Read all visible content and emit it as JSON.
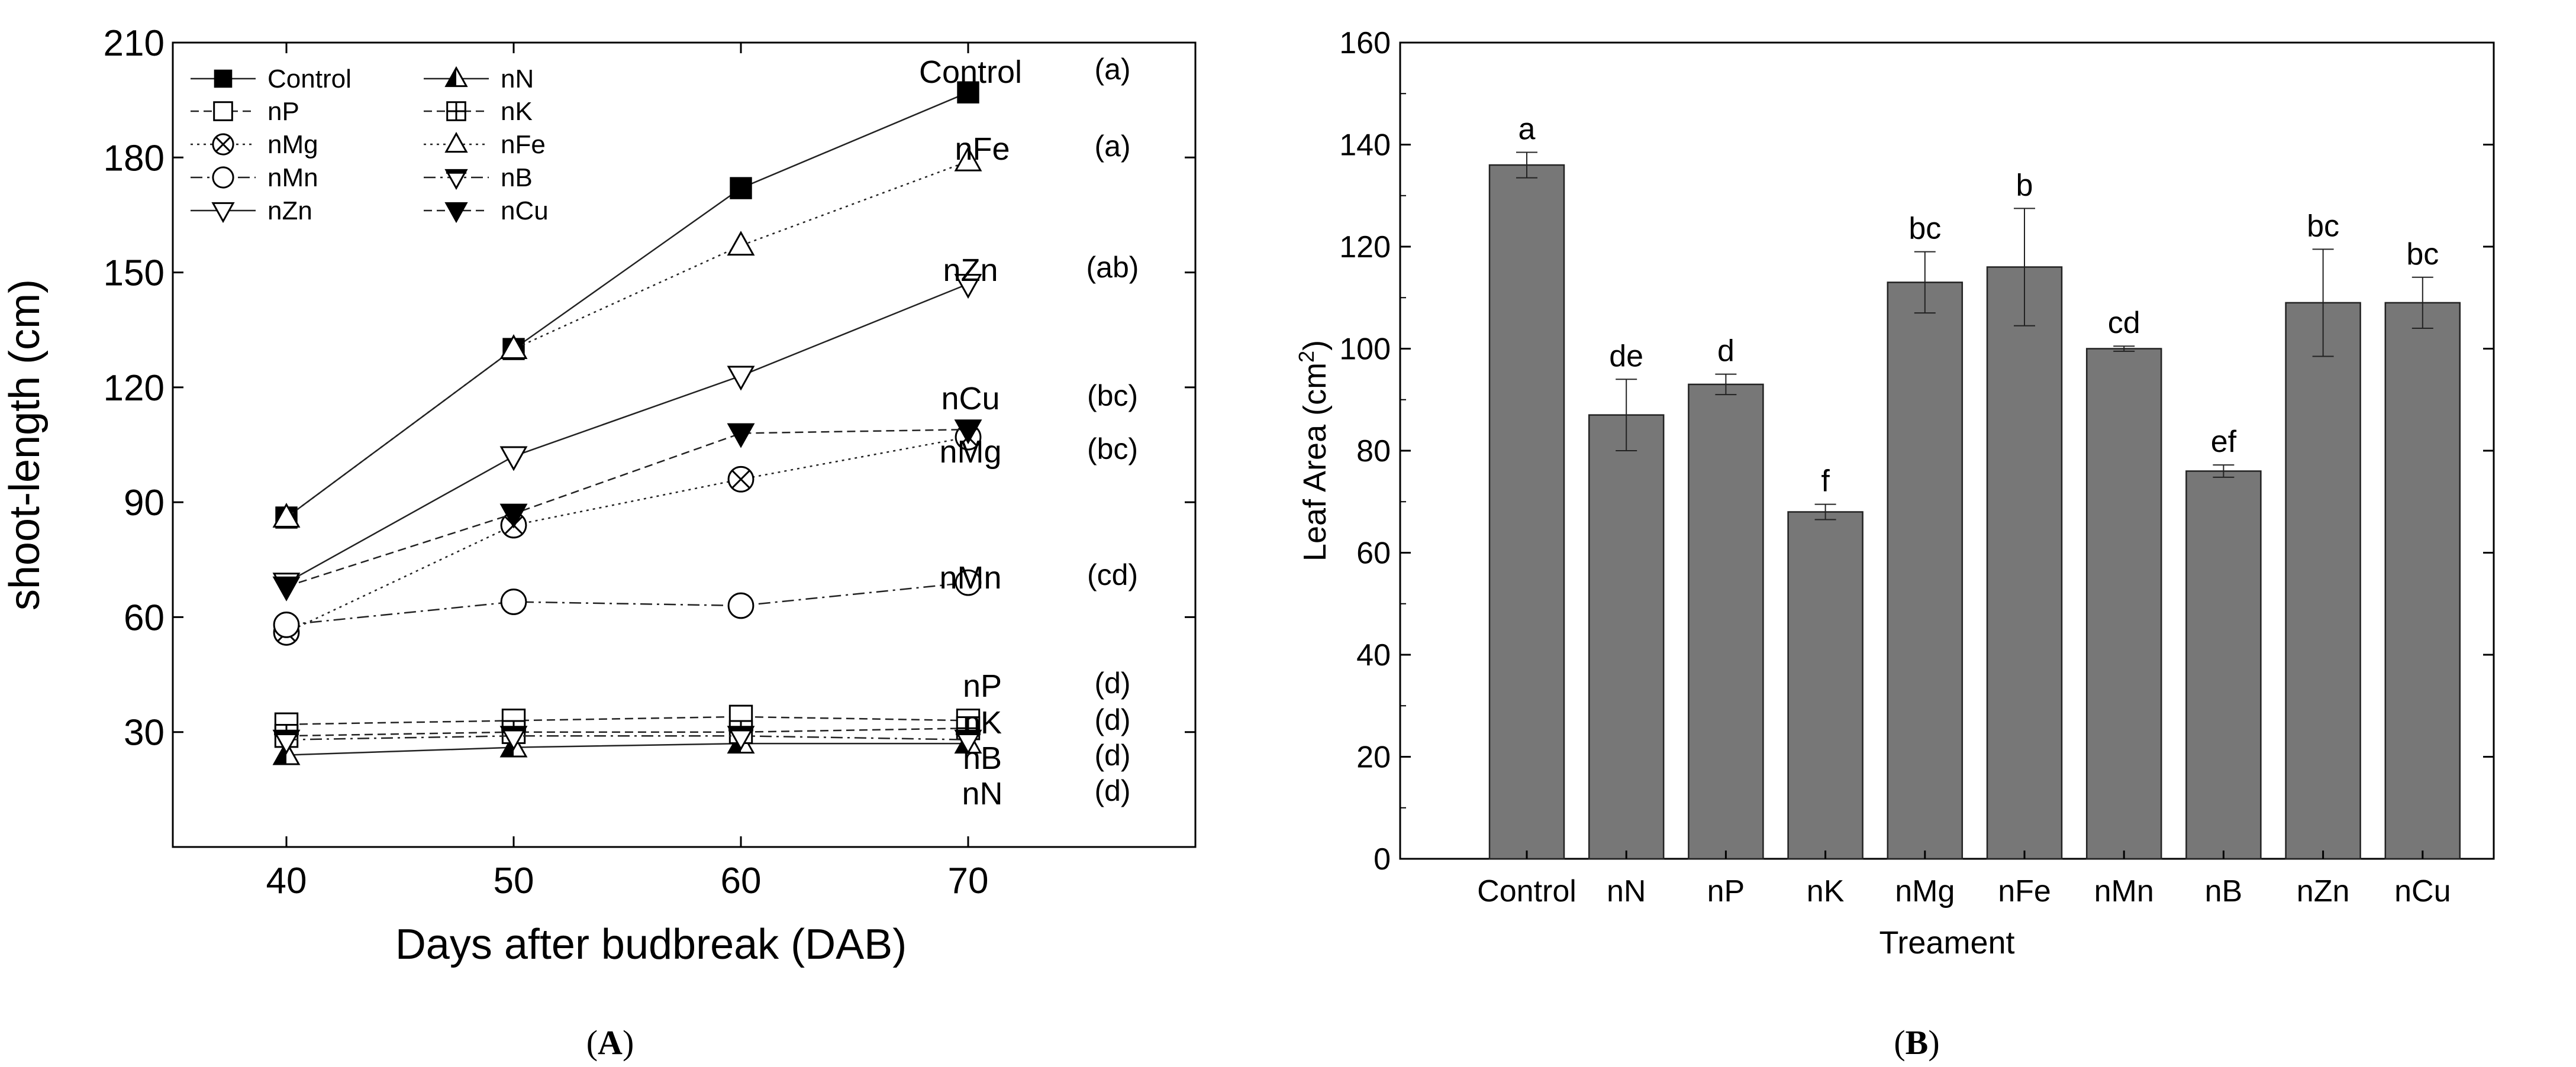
{
  "chart_data": [
    {
      "panel_label": "A",
      "type": "line",
      "title": "",
      "xlabel": "Days after budbreak (DAB)",
      "ylabel": "shoot-length (cm)",
      "xlim": [
        35,
        80
      ],
      "ylim": [
        0,
        210
      ],
      "xticks": [
        40,
        50,
        60,
        70
      ],
      "yticks": [
        30,
        60,
        90,
        120,
        150,
        180,
        210
      ],
      "x": [
        40,
        50,
        60,
        70
      ],
      "legend_position": "top-left",
      "series": [
        {
          "name": "Control",
          "marker": "square-filled",
          "line": "solid",
          "values": [
            86,
            130,
            172,
            197
          ],
          "end_label": "Control",
          "group": "(a)"
        },
        {
          "name": "nP",
          "marker": "square-open",
          "line": "dashed",
          "values": [
            32,
            33,
            34,
            33
          ],
          "end_label": "nP",
          "group": "(d)"
        },
        {
          "name": "nMg",
          "marker": "circle-x",
          "line": "dotted",
          "values": [
            56,
            84,
            96,
            107
          ],
          "end_label": "nMg",
          "group": "(bc)"
        },
        {
          "name": "nMn",
          "marker": "circle-open",
          "line": "dashdot",
          "values": [
            58,
            64,
            63,
            69
          ],
          "end_label": "nMn",
          "group": "(cd)"
        },
        {
          "name": "nZn",
          "marker": "triangle-down-open",
          "line": "solid",
          "values": [
            69,
            102,
            123,
            147
          ],
          "end_label": "nZn",
          "group": "(ab)"
        },
        {
          "name": "nN",
          "marker": "triangle-up-half",
          "line": "solid",
          "values": [
            24,
            26,
            27,
            27
          ],
          "end_label": "nN",
          "group": "(d)"
        },
        {
          "name": "nK",
          "marker": "square-plus",
          "line": "dashed",
          "values": [
            29,
            30,
            30,
            31
          ],
          "end_label": "nK",
          "group": "(d)"
        },
        {
          "name": "nFe",
          "marker": "triangle-up-open",
          "line": "dotted",
          "values": [
            86,
            130,
            157,
            179
          ],
          "end_label": "nFe",
          "group": "(a)"
        },
        {
          "name": "nB",
          "marker": "triangle-down-open-bar",
          "line": "dashdot",
          "values": [
            28,
            29,
            29,
            28
          ],
          "end_label": "nB",
          "group": "(d)"
        },
        {
          "name": "nCu",
          "marker": "triangle-down-filled",
          "line": "dashed",
          "values": [
            68,
            87,
            108,
            109
          ],
          "end_label": "nCu",
          "group": "(bc)"
        }
      ]
    },
    {
      "panel_label": "B",
      "type": "bar",
      "title": "",
      "xlabel": "Treament",
      "ylabel": "Leaf Area (cm",
      "ylabel_sup": "2",
      "ylabel_close": ")",
      "ylim": [
        0,
        160
      ],
      "yticks": [
        0,
        20,
        40,
        60,
        80,
        100,
        120,
        140,
        160
      ],
      "bar_color": "#777777",
      "categories": [
        "Control",
        "nN",
        "nP",
        "nK",
        "nMg",
        "nFe",
        "nMn",
        "nB",
        "nZn",
        "nCu"
      ],
      "values": [
        136,
        87,
        93,
        68,
        113,
        116,
        100,
        76,
        109,
        109
      ],
      "errors": [
        2.5,
        7,
        2,
        1.5,
        6,
        11.5,
        0.5,
        1.2,
        10.5,
        5
      ],
      "letters": [
        "a",
        "de",
        "d",
        "f",
        "bc",
        "b",
        "cd",
        "ef",
        "bc",
        "bc"
      ]
    }
  ],
  "captions": {
    "open": "(",
    "close": ")",
    "A": "A",
    "B": "B"
  }
}
